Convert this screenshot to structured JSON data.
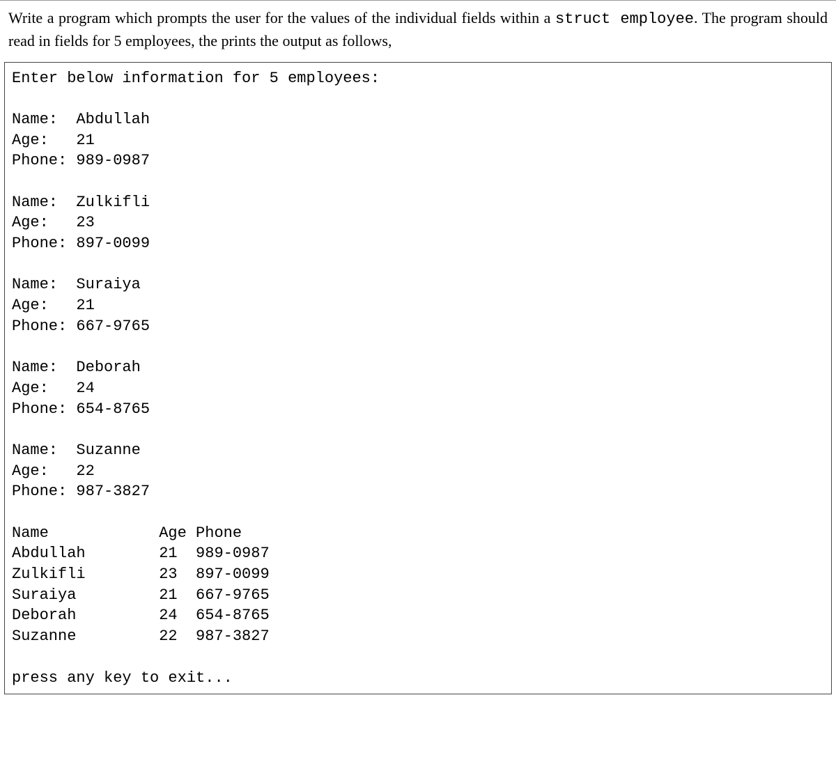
{
  "instruction": {
    "part1": "Write a program which prompts the user for the values of the individual fields within a ",
    "code1": "struct employee",
    "part2": ". The program should read in fields for 5 employees, the prints the output as follows,"
  },
  "output": {
    "header": "Enter below information for 5 employees:",
    "labels": {
      "name": "Name:",
      "age": "Age:",
      "phone": "Phone:"
    },
    "entries": [
      {
        "name": "Abdullah",
        "age": "21",
        "phone": "989-0987"
      },
      {
        "name": "Zulkifli",
        "age": "23",
        "phone": "897-0099"
      },
      {
        "name": "Suraiya",
        "age": "21",
        "phone": "667-9765"
      },
      {
        "name": "Deborah",
        "age": "24",
        "phone": "654-8765"
      },
      {
        "name": "Suzanne",
        "age": "22",
        "phone": "987-3827"
      }
    ],
    "table": {
      "col_name": "Name",
      "col_age": "Age",
      "col_phone": "Phone",
      "name_width": 16,
      "age_width": 4
    },
    "footer": "press any key to exit..."
  }
}
